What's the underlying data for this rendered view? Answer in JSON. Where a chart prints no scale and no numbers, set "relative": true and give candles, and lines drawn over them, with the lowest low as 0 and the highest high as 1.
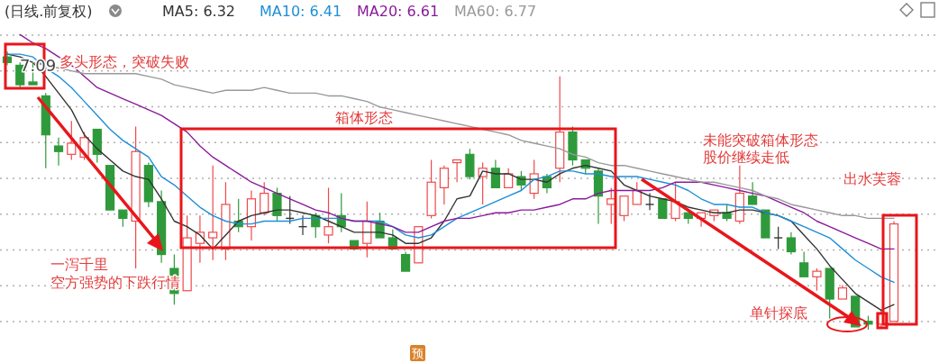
{
  "chart_data": {
    "type": "candlestick",
    "title": "(日线.前复权)",
    "relative": true,
    "grid": "y",
    "legend": "top left",
    "categories": [
      null,
      null,
      null,
      null,
      null,
      null,
      null,
      null,
      null,
      null,
      null,
      null,
      null,
      null,
      null,
      null,
      null,
      null,
      null,
      null,
      null,
      null,
      null,
      null,
      null,
      null,
      null,
      null,
      null,
      null,
      null,
      null,
      null,
      null,
      null,
      null,
      null,
      null,
      null,
      null,
      null,
      null,
      null,
      null,
      null,
      null,
      null,
      null,
      null,
      null,
      null,
      null,
      null,
      null,
      null,
      null,
      null,
      null,
      null,
      null,
      null,
      null,
      null,
      null,
      null,
      null,
      null,
      null,
      null,
      null
    ],
    "ohlc": [
      [
        0.98,
        1,
        0.95,
        0.96
      ],
      [
        0.95,
        0.96,
        0.87,
        0.88
      ],
      [
        0.89,
        0.96,
        0.88,
        0.88
      ],
      [
        0.84,
        0.85,
        0.58,
        0.7
      ],
      [
        0.66,
        0.69,
        0.59,
        0.64
      ],
      [
        0.63,
        0.75,
        0.61,
        0.67
      ],
      [
        0.62,
        0.71,
        0.61,
        0.69
      ],
      [
        0.72,
        0.72,
        0.6,
        0.63
      ],
      [
        0.59,
        0.59,
        0.43,
        0.43
      ],
      [
        0.43,
        0.43,
        0.37,
        0.4
      ],
      [
        0.39,
        0.73,
        0.22,
        0.64
      ],
      [
        0.59,
        0.6,
        0.44,
        0.46
      ],
      [
        0.46,
        0.5,
        0.24,
        0.27
      ],
      [
        0.22,
        0.27,
        0.09,
        0.13
      ],
      [
        0.14,
        0.41,
        0.14,
        0.33
      ],
      [
        0.31,
        0.41,
        0.24,
        0.35
      ],
      [
        0.33,
        0.59,
        0.25,
        0.35
      ],
      [
        0.29,
        0.53,
        0.25,
        0.45
      ],
      [
        0.39,
        0.47,
        0.35,
        0.37
      ],
      [
        0.37,
        0.5,
        0.32,
        0.47
      ],
      [
        0.42,
        0.53,
        0.41,
        0.49
      ],
      [
        0.49,
        0.51,
        0.39,
        0.41
      ],
      [
        0.4,
        0.48,
        0.38,
        0.4
      ],
      [
        0.37,
        0.41,
        0.34,
        0.37
      ],
      [
        0.41,
        0.42,
        0.33,
        0.37
      ],
      [
        0.34,
        0.51,
        0.31,
        0.37
      ],
      [
        0.41,
        0.49,
        0.35,
        0.37
      ],
      [
        0.32,
        0.32,
        0.29,
        0.29
      ],
      [
        0.31,
        0.46,
        0.26,
        0.39
      ],
      [
        0.39,
        0.42,
        0.33,
        0.33
      ],
      [
        0.33,
        0.36,
        0.29,
        0.29
      ],
      [
        0.27,
        0.28,
        0.21,
        0.21
      ],
      [
        0.24,
        0.37,
        0.24,
        0.37
      ],
      [
        0.41,
        0.61,
        0.4,
        0.53
      ],
      [
        0.51,
        0.59,
        0.45,
        0.58
      ],
      [
        0.6,
        0.61,
        0.53,
        0.61
      ],
      [
        0.63,
        0.65,
        0.54,
        0.55
      ],
      [
        0.55,
        0.6,
        0.45,
        0.58
      ],
      [
        0.58,
        0.61,
        0.51,
        0.51
      ],
      [
        0.51,
        0.58,
        0.51,
        0.56
      ],
      [
        0.55,
        0.57,
        0.5,
        0.52
      ],
      [
        0.49,
        0.61,
        0.47,
        0.56
      ],
      [
        0.55,
        0.56,
        0.49,
        0.51
      ],
      [
        0.58,
        0.91,
        0.53,
        0.71
      ],
      [
        0.71,
        0.73,
        0.59,
        0.61
      ],
      [
        0.61,
        0.61,
        0.56,
        0.58
      ],
      [
        0.57,
        0.58,
        0.38,
        0.48
      ],
      [
        0.45,
        0.51,
        0.38,
        0.47
      ],
      [
        0.41,
        0.48,
        0.39,
        0.48
      ],
      [
        0.45,
        0.53,
        0.45,
        0.5
      ],
      [
        0.45,
        0.49,
        0.43,
        0.45
      ],
      [
        0.47,
        0.47,
        0.4,
        0.4
      ],
      [
        0.4,
        0.53,
        0.39,
        0.46
      ],
      [
        0.42,
        0.42,
        0.38,
        0.4
      ],
      [
        0.4,
        0.42,
        0.37,
        0.42
      ],
      [
        0.41,
        0.43,
        0.39,
        0.43
      ],
      [
        0.42,
        0.45,
        0.39,
        0.4
      ],
      [
        0.39,
        0.59,
        0.38,
        0.49
      ],
      [
        0.48,
        0.53,
        0.45,
        0.45
      ],
      [
        0.43,
        0.43,
        0.33,
        0.33
      ],
      [
        0.33,
        0.37,
        0.29,
        0.33
      ],
      [
        0.33,
        0.35,
        0.27,
        0.28
      ],
      [
        0.24,
        0.28,
        0.19,
        0.19
      ],
      [
        0.19,
        0.22,
        0.14,
        0.21
      ],
      [
        0.22,
        0.22,
        0.04,
        0.11
      ],
      [
        0.11,
        0.16,
        0.11,
        0.15
      ],
      [
        0.12,
        0.12,
        0.01,
        0.01
      ],
      [
        0.03,
        0.05,
        0,
        0.02
      ],
      [
        0.02,
        0.07,
        0.01,
        0.06
      ],
      [
        0.03,
        0.39,
        0.03,
        0.38
      ]
    ],
    "series": [
      {
        "name": "MA5: 6.32",
        "type": "line",
        "color": "#333333",
        "values": [
          0.99,
          0.98,
          0.96,
          0.91,
          0.85,
          0.79,
          0.7,
          0.65,
          0.61,
          0.57,
          0.55,
          0.54,
          0.47,
          0.39,
          0.37,
          0.34,
          0.29,
          0.34,
          0.39,
          0.41,
          0.42,
          0.43,
          0.43,
          0.42,
          0.41,
          0.39,
          0.37,
          0.35,
          0.35,
          0.35,
          0.34,
          0.31,
          0.31,
          0.33,
          0.39,
          0.47,
          0.48,
          0.57,
          0.56,
          0.56,
          0.54,
          0.54,
          0.53,
          0.56,
          0.58,
          0.59,
          0.58,
          0.57,
          0.52,
          0.5,
          0.48,
          0.47,
          0.46,
          0.44,
          0.43,
          0.42,
          0.42,
          0.43,
          0.43,
          0.42,
          0.41,
          0.39,
          0.34,
          0.29,
          0.23,
          0.18,
          0.13,
          0.1,
          0.07,
          0.09
        ]
      },
      {
        "name": "MA10: 6.41",
        "type": "line",
        "color": "#1e8fd6",
        "values": [
          0.99,
          0.99,
          0.98,
          0.94,
          0.91,
          0.87,
          0.82,
          0.77,
          0.72,
          0.68,
          0.65,
          0.62,
          0.55,
          0.52,
          0.48,
          0.44,
          0.41,
          0.39,
          0.38,
          0.38,
          0.39,
          0.39,
          0.39,
          0.4,
          0.4,
          0.4,
          0.4,
          0.39,
          0.39,
          0.39,
          0.37,
          0.34,
          0.33,
          0.34,
          0.37,
          0.4,
          0.42,
          0.44,
          0.46,
          0.48,
          0.5,
          0.54,
          0.55,
          0.57,
          0.57,
          0.56,
          0.56,
          0.55,
          0.55,
          0.55,
          0.54,
          0.53,
          0.52,
          0.5,
          0.47,
          0.45,
          0.45,
          0.44,
          0.44,
          0.42,
          0.41,
          0.39,
          0.37,
          0.35,
          0.33,
          0.29,
          0.25,
          0.22,
          0.19,
          0.17
        ]
      },
      {
        "name": "MA20: 6.61",
        "type": "line",
        "color": "#8b1a9b",
        "values": [
          null,
          1.06,
          1.03,
          1.01,
          0.98,
          0.95,
          0.91,
          0.87,
          0.85,
          0.83,
          0.81,
          0.79,
          0.77,
          0.74,
          0.71,
          0.66,
          0.62,
          0.59,
          0.56,
          0.53,
          0.51,
          0.49,
          0.47,
          0.45,
          0.43,
          0.42,
          0.4,
          0.39,
          0.39,
          0.38,
          0.37,
          0.35,
          0.35,
          0.37,
          0.39,
          0.4,
          0.4,
          0.41,
          0.42,
          0.42,
          0.43,
          0.43,
          0.44,
          0.45,
          0.47,
          0.47,
          0.49,
          0.5,
          0.5,
          0.5,
          0.5,
          0.51,
          0.53,
          0.53,
          0.53,
          0.52,
          0.51,
          0.5,
          0.49,
          0.48,
          0.46,
          0.44,
          0.42,
          0.39,
          0.37,
          0.35,
          0.33,
          0.31,
          0.29,
          0.29
        ]
      },
      {
        "name": "MA60: 6.77",
        "type": "line",
        "color": "#999999",
        "values": [
          null,
          null,
          0.96,
          0.95,
          0.94,
          0.93,
          0.92,
          0.92,
          0.92,
          0.92,
          0.92,
          0.91,
          0.9,
          0.88,
          0.87,
          0.86,
          0.85,
          0.86,
          0.86,
          0.86,
          0.87,
          0.86,
          0.85,
          0.85,
          0.85,
          0.84,
          0.84,
          0.83,
          0.82,
          0.8,
          0.79,
          0.78,
          0.77,
          0.76,
          0.75,
          0.74,
          0.73,
          0.72,
          0.71,
          0.7,
          0.68,
          0.67,
          0.66,
          0.65,
          0.63,
          0.62,
          0.6,
          0.59,
          0.59,
          0.58,
          0.57,
          0.56,
          0.55,
          0.54,
          0.53,
          0.53,
          0.52,
          0.51,
          0.5,
          0.48,
          0.47,
          0.45,
          0.44,
          0.43,
          0.42,
          0.41,
          0.41,
          0.4,
          0.4,
          0.4
        ]
      }
    ],
    "annotations": [
      "7.09",
      "多头形态，突破失败",
      "箱体形态",
      "未能突破箱体形态",
      "股价继续走低",
      "出水芙蓉",
      "一泻千里",
      "空方强势的下跌行情",
      "单针探底",
      "预"
    ]
  }
}
